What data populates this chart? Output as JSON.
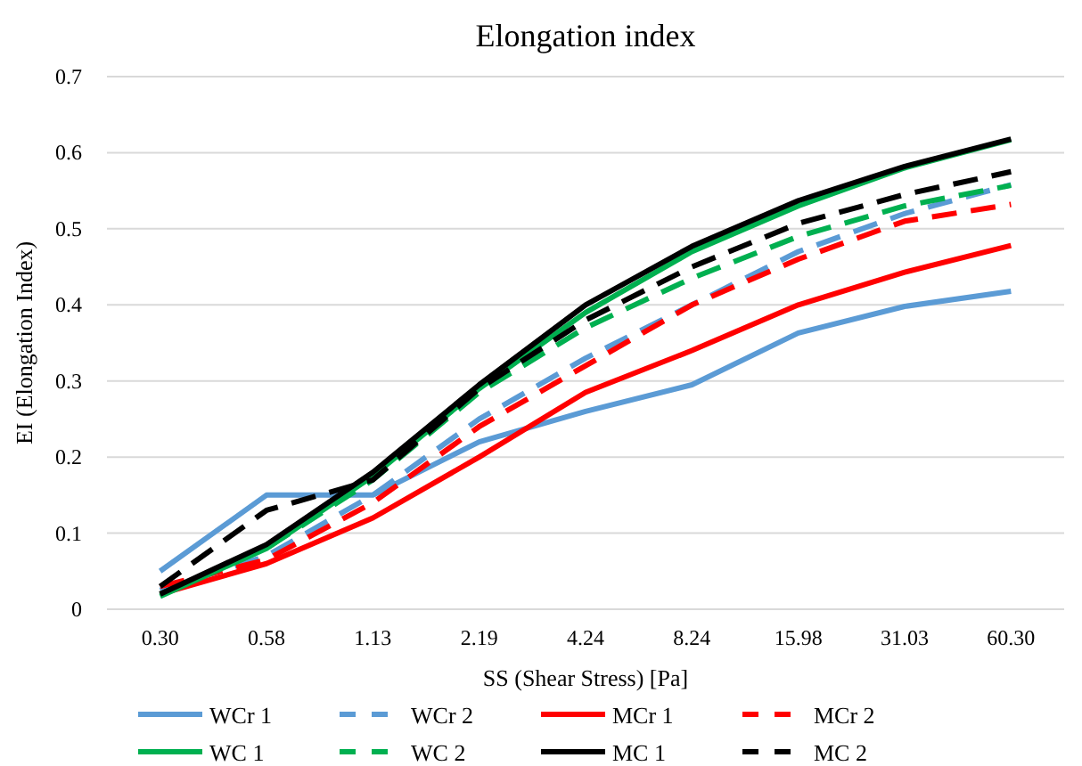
{
  "chart_data": {
    "type": "line",
    "title": "Elongation index",
    "xlabel": "SS (Shear Stress) [Pa]",
    "ylabel": "EI (Elongation Index)",
    "categories": [
      "0.30",
      "0.58",
      "1.13",
      "2.19",
      "4.24",
      "8.24",
      "15.98",
      "31.03",
      "60.30"
    ],
    "ylim": [
      0,
      0.7
    ],
    "yticks": [
      {
        "value": 0,
        "label": "0"
      },
      {
        "value": 0.1,
        "label": "0.1"
      },
      {
        "value": 0.2,
        "label": "0.2"
      },
      {
        "value": 0.3,
        "label": "0.3"
      },
      {
        "value": 0.4,
        "label": "0.4"
      },
      {
        "value": 0.5,
        "label": "0.5"
      },
      {
        "value": 0.6,
        "label": "0.6"
      },
      {
        "value": 0.7,
        "label": "0.7"
      }
    ],
    "grid": "y",
    "legend": "bottom",
    "marker": "none",
    "series": [
      {
        "name": "WCr 1",
        "color": "#5b9bd5",
        "line_style": "solid",
        "values": [
          0.05,
          0.15,
          0.15,
          0.22,
          0.26,
          0.295,
          0.363,
          0.398,
          0.418
        ]
      },
      {
        "name": "WCr 2",
        "color": "#5b9bd5",
        "line_style": "dashed",
        "values": [
          0.025,
          0.07,
          0.15,
          0.25,
          0.33,
          0.4,
          0.47,
          0.52,
          0.558
        ]
      },
      {
        "name": "MCr 1",
        "color": "#ff0000",
        "line_style": "solid",
        "values": [
          0.02,
          0.06,
          0.12,
          0.2,
          0.285,
          0.34,
          0.4,
          0.443,
          0.478
        ]
      },
      {
        "name": "MCr 2",
        "color": "#ff0000",
        "line_style": "dashed",
        "values": [
          0.03,
          0.065,
          0.14,
          0.24,
          0.32,
          0.4,
          0.46,
          0.51,
          0.532
        ]
      },
      {
        "name": "WC 1",
        "color": "#00b050",
        "line_style": "solid",
        "values": [
          0.017,
          0.08,
          0.175,
          0.29,
          0.39,
          0.47,
          0.53,
          0.58,
          0.617
        ]
      },
      {
        "name": "WC 2",
        "color": "#00b050",
        "line_style": "dashed",
        "values": [
          0.02,
          0.08,
          0.17,
          0.285,
          0.37,
          0.435,
          0.49,
          0.53,
          0.557
        ]
      },
      {
        "name": "MC 1",
        "color": "#000000",
        "line_style": "solid",
        "values": [
          0.02,
          0.085,
          0.18,
          0.295,
          0.4,
          0.477,
          0.537,
          0.582,
          0.618
        ]
      },
      {
        "name": "MC 2",
        "color": "#000000",
        "line_style": "dashed",
        "values": [
          0.03,
          0.13,
          0.17,
          0.29,
          0.38,
          0.45,
          0.507,
          0.545,
          0.575
        ]
      }
    ]
  }
}
